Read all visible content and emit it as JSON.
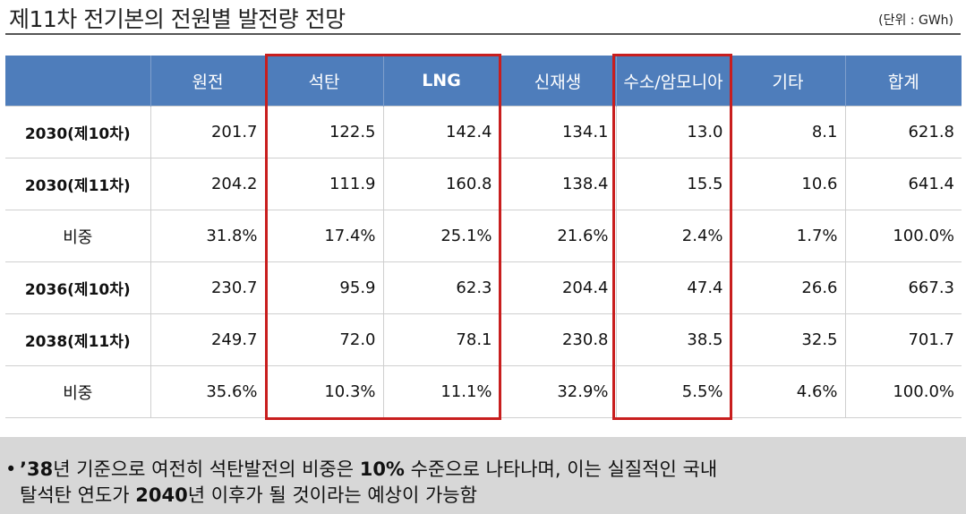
{
  "title": "제11차 전기본의 전원별 발전량 전망",
  "unit": "(단위 : GWh)",
  "columns": [
    "",
    "원전",
    "석탄",
    "LNG",
    "신재생",
    "수소/암모니아",
    "기타",
    "합계"
  ],
  "rows": [
    {
      "label": "2030(제10차)",
      "values": [
        "201.7",
        "122.5",
        "142.4",
        "134.1",
        "13.0",
        "8.1",
        "621.8"
      ],
      "bold": true
    },
    {
      "label": "2030(제11차)",
      "values": [
        "204.2",
        "111.9",
        "160.8",
        "138.4",
        "15.5",
        "10.6",
        "641.4"
      ],
      "bold": true
    },
    {
      "label": "비중",
      "values": [
        "31.8%",
        "17.4%",
        "25.1%",
        "21.6%",
        "2.4%",
        "1.7%",
        "100.0%"
      ],
      "bold": false
    },
    {
      "label": "2036(제10차)",
      "values": [
        "230.7",
        "95.9",
        "62.3",
        "204.4",
        "47.4",
        "26.6",
        "667.3"
      ],
      "bold": true
    },
    {
      "label": "2038(제11차)",
      "values": [
        "249.7",
        "72.0",
        "78.1",
        "230.8",
        "38.5",
        "32.5",
        "701.7"
      ],
      "bold": true
    },
    {
      "label": "비중",
      "values": [
        "35.6%",
        "10.3%",
        "11.1%",
        "32.9%",
        "5.5%",
        "4.6%",
        "100.0%"
      ],
      "bold": false
    }
  ],
  "note": {
    "bullet": "•",
    "line1_a": "’38",
    "line1_b": "년 기준으로 여전히 석탄발전의 비중은 ",
    "line1_c": "10%",
    "line1_d": " 수준으로 나타나며, 이는 실질적인 국내",
    "line2_a": "탈석탄 연도가 ",
    "line2_b": "2040",
    "line2_c": "년 이후가 될 것이라는 예상이 가능함"
  },
  "colors": {
    "header": "#4e7dbb",
    "highlight": "#c81e1e",
    "note_bg": "#d7d7d7"
  }
}
